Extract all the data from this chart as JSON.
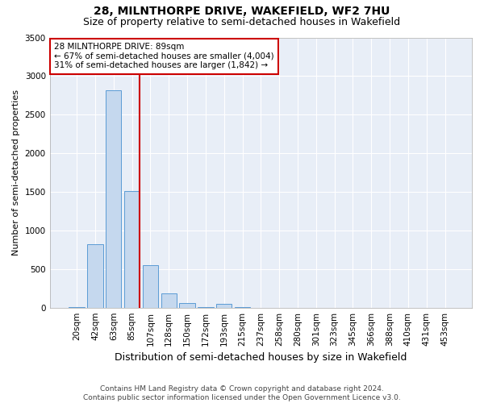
{
  "title": "28, MILNTHORPE DRIVE, WAKEFIELD, WF2 7HU",
  "subtitle": "Size of property relative to semi-detached houses in Wakefield",
  "xlabel": "Distribution of semi-detached houses by size in Wakefield",
  "ylabel": "Number of semi-detached properties",
  "categories": [
    "20sqm",
    "42sqm",
    "63sqm",
    "85sqm",
    "107sqm",
    "128sqm",
    "150sqm",
    "172sqm",
    "193sqm",
    "215sqm",
    "237sqm",
    "258sqm",
    "280sqm",
    "301sqm",
    "323sqm",
    "345sqm",
    "366sqm",
    "388sqm",
    "410sqm",
    "431sqm",
    "453sqm"
  ],
  "values": [
    10,
    820,
    2820,
    1510,
    550,
    185,
    55,
    10,
    45,
    10,
    0,
    0,
    0,
    0,
    0,
    0,
    0,
    0,
    0,
    0,
    0
  ],
  "bar_color": "#c5d8ee",
  "bar_edge_color": "#5b9bd5",
  "vline_color": "#cc0000",
  "annotation_title": "28 MILNTHORPE DRIVE: 89sqm",
  "annotation_line1": "← 67% of semi-detached houses are smaller (4,004)",
  "annotation_line2": "31% of semi-detached houses are larger (1,842) →",
  "annotation_box_color": "#ffffff",
  "annotation_box_edge": "#cc0000",
  "ylim": [
    0,
    3500
  ],
  "yticks": [
    0,
    500,
    1000,
    1500,
    2000,
    2500,
    3000,
    3500
  ],
  "bg_color": "#e8eef7",
  "grid_color": "#ffffff",
  "footer": "Contains HM Land Registry data © Crown copyright and database right 2024.\nContains public sector information licensed under the Open Government Licence v3.0.",
  "title_fontsize": 10,
  "subtitle_fontsize": 9,
  "xlabel_fontsize": 9,
  "ylabel_fontsize": 8,
  "tick_fontsize": 7.5,
  "annot_fontsize": 7.5,
  "footer_fontsize": 6.5
}
